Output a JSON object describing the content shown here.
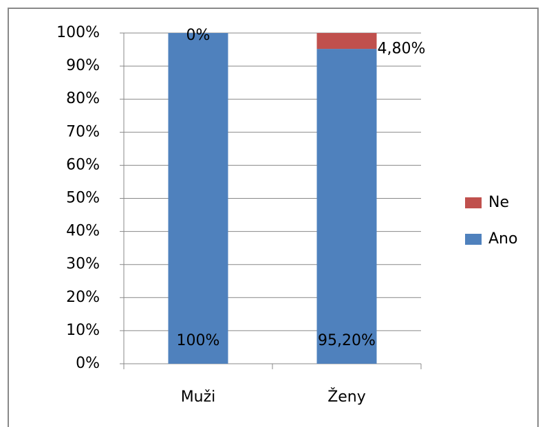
{
  "chart_data": {
    "type": "stacked_bar",
    "categories": [
      "Muži",
      "Ženy"
    ],
    "series": [
      {
        "name": "Ano",
        "color": "#4f81bd",
        "values": [
          100,
          95.2
        ],
        "value_labels": [
          "100%",
          "95,20%"
        ]
      },
      {
        "name": "Ne",
        "color": "#c0504d",
        "values": [
          0,
          4.8
        ],
        "value_labels": [
          "0%",
          "4,80%"
        ]
      }
    ],
    "ylim": [
      0,
      100
    ],
    "yticks": [
      {
        "value": 0,
        "label": "0%"
      },
      {
        "value": 10,
        "label": "10%"
      },
      {
        "value": 20,
        "label": "20%"
      },
      {
        "value": 30,
        "label": "30%"
      },
      {
        "value": 40,
        "label": "40%"
      },
      {
        "value": 50,
        "label": "50%"
      },
      {
        "value": 60,
        "label": "60%"
      },
      {
        "value": 70,
        "label": "70%"
      },
      {
        "value": 80,
        "label": "80%"
      },
      {
        "value": 90,
        "label": "90%"
      },
      {
        "value": 100,
        "label": "100%"
      }
    ],
    "grid": true,
    "legend": "right"
  }
}
